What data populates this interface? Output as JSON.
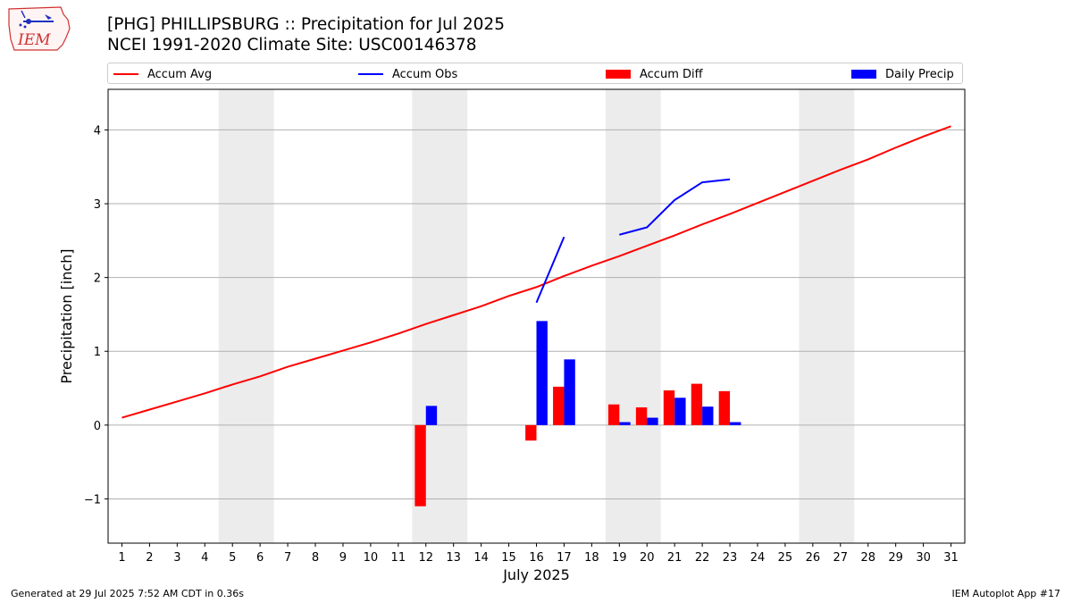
{
  "header": {
    "title_line1": "[PHG] PHILLIPSBURG :: Precipitation for Jul 2025",
    "title_line2": "NCEI 1991-2020 Climate Site: USC00146378",
    "logo_text": "IEM"
  },
  "footer": {
    "left": "Generated at 29 Jul 2025 7:52 AM CDT in 0.36s",
    "right": "IEM Autoplot App #17"
  },
  "legend": {
    "items": [
      {
        "label": "Accum Avg",
        "kind": "line",
        "color": "#ff0000"
      },
      {
        "label": "Accum Obs",
        "kind": "line",
        "color": "#0000ff"
      },
      {
        "label": "Accum Diff",
        "kind": "box",
        "color": "#ff0000"
      },
      {
        "label": "Daily Precip",
        "kind": "box",
        "color": "#0000ff"
      }
    ]
  },
  "chart_data": {
    "type": "bar",
    "xlabel": "July 2025",
    "ylabel": "Precipitation [inch]",
    "xlim": [
      0.5,
      31.5
    ],
    "ylim": [
      -1.6,
      4.55
    ],
    "x_ticks": [
      "1",
      "2",
      "3",
      "4",
      "5",
      "6",
      "7",
      "8",
      "9",
      "10",
      "11",
      "12",
      "13",
      "14",
      "15",
      "16",
      "17",
      "18",
      "19",
      "20",
      "21",
      "22",
      "23",
      "24",
      "25",
      "26",
      "27",
      "28",
      "29",
      "30",
      "31"
    ],
    "y_ticks": [
      -1,
      0,
      1,
      2,
      3,
      4
    ],
    "y_tick_labels": [
      "−1",
      "0",
      "1",
      "2",
      "3",
      "4"
    ],
    "grid": "horizontal",
    "weekend_bands": [
      [
        5,
        6
      ],
      [
        12,
        13
      ],
      [
        19,
        20
      ],
      [
        26,
        27
      ]
    ],
    "weekend_color": "#ececec",
    "series": [
      {
        "name": "Accum Avg",
        "kind": "line",
        "color": "#ff0000",
        "x": [
          1,
          2,
          3,
          4,
          5,
          6,
          7,
          8,
          9,
          10,
          11,
          12,
          13,
          14,
          15,
          16,
          17,
          18,
          19,
          20,
          21,
          22,
          23,
          24,
          25,
          26,
          27,
          28,
          29,
          30,
          31
        ],
        "y": [
          0.1,
          0.21,
          0.32,
          0.43,
          0.55,
          0.66,
          0.79,
          0.9,
          1.01,
          1.12,
          1.24,
          1.37,
          1.49,
          1.61,
          1.75,
          1.87,
          2.02,
          2.16,
          2.29,
          2.43,
          2.57,
          2.72,
          2.86,
          3.01,
          3.16,
          3.31,
          3.46,
          3.6,
          3.76,
          3.91,
          4.05
        ]
      },
      {
        "name": "Accum Obs",
        "kind": "line",
        "color": "#0000ff",
        "segments": [
          {
            "x": [
              16,
              17
            ],
            "y": [
              1.66,
              2.55
            ]
          },
          {
            "x": [
              19,
              20,
              21,
              22,
              23
            ],
            "y": [
              2.58,
              2.68,
              3.05,
              3.29,
              3.33
            ]
          }
        ]
      },
      {
        "name": "Accum Diff",
        "kind": "bar",
        "color": "#ff0000",
        "x": [
          12,
          16,
          17,
          19,
          20,
          21,
          22,
          23
        ],
        "y": [
          -1.1,
          -0.21,
          0.52,
          0.28,
          0.24,
          0.47,
          0.56,
          0.46
        ]
      },
      {
        "name": "Daily Precip",
        "kind": "bar",
        "color": "#0000ff",
        "x": [
          12,
          16,
          17,
          19,
          20,
          21,
          22,
          23
        ],
        "y": [
          0.26,
          1.41,
          0.89,
          0.04,
          0.1,
          0.37,
          0.25,
          0.04
        ]
      }
    ]
  }
}
